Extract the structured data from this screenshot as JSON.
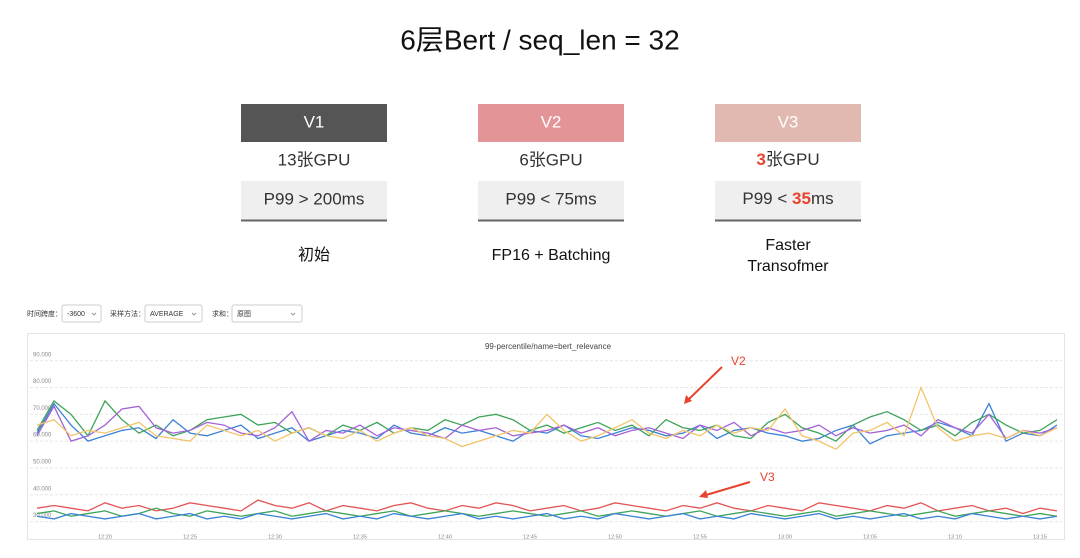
{
  "title": "6层Bert / seq_len = 32",
  "cards": [
    {
      "header": "V1",
      "gpus": [
        "13张GPU"
      ],
      "latency": [
        "P99 > 200ms"
      ],
      "caption": [
        "初始"
      ]
    },
    {
      "header": "V2",
      "gpus": [
        "6张GPU"
      ],
      "latency": [
        "P99 < 75ms"
      ],
      "caption": [
        "FP16 + Batching"
      ]
    },
    {
      "header": "V3",
      "gpus": [
        "3",
        "张GPU"
      ],
      "latency": [
        "P99 < ",
        "35",
        "ms"
      ],
      "caption": [
        "Faster",
        "Transofmer"
      ]
    }
  ],
  "controls": {
    "span_label": "时间跨度：",
    "span": "-3600",
    "method_label": "采样方法：",
    "method": "AVERAGE",
    "sum_label": "求和：",
    "sum": "原图"
  },
  "chart_data": {
    "type": "line",
    "title": "99-percentile/name=bert_relevance",
    "annotations": [
      "V2",
      "V3"
    ],
    "categories": [
      null,
      null,
      null,
      null,
      "12:20",
      null,
      null,
      null,
      null,
      "12:25",
      null,
      null,
      null,
      null,
      "12:30",
      null,
      null,
      null,
      null,
      "12:35",
      null,
      null,
      null,
      null,
      "12:40",
      null,
      null,
      null,
      null,
      "12:45",
      null,
      null,
      null,
      null,
      "12:50",
      null,
      null,
      null,
      null,
      "12:55",
      null,
      null,
      null,
      null,
      "13:00",
      null,
      null,
      null,
      null,
      "13:05",
      null,
      null,
      null,
      null,
      "13:10",
      null,
      null,
      null,
      null,
      "13:15",
      null
    ],
    "ylim": [
      25,
      94
    ],
    "yticks": [
      {
        "value": 30,
        "label": "30.000"
      },
      {
        "value": 40,
        "label": "40.000"
      },
      {
        "value": 50,
        "label": "50.000"
      },
      {
        "value": 60,
        "label": "60.000"
      },
      {
        "value": 70,
        "label": "70.000"
      },
      {
        "value": 80,
        "label": "80.000"
      },
      {
        "value": 90,
        "label": "90.000"
      }
    ],
    "grid": true,
    "series": [
      {
        "color": "#3b82d6",
        "values": [
          63,
          74,
          66,
          60,
          62,
          64,
          65,
          61,
          68,
          63,
          62,
          64,
          66,
          61,
          63,
          65,
          60,
          62,
          64,
          63,
          61,
          66,
          63,
          62,
          65,
          63,
          64,
          62,
          60,
          64,
          63,
          66,
          62,
          61,
          63,
          65,
          64,
          62,
          63,
          66,
          61,
          64,
          65,
          63,
          62,
          60,
          61,
          64,
          66,
          59,
          62,
          63,
          64,
          67,
          65,
          62,
          74,
          60,
          63,
          62,
          66
        ]
      },
      {
        "color": "#3fa35a",
        "values": [
          64,
          75,
          70,
          62,
          75,
          68,
          63,
          66,
          62,
          64,
          68,
          69,
          70,
          66,
          67,
          63,
          65,
          62,
          66,
          64,
          67,
          63,
          65,
          64,
          68,
          66,
          69,
          70,
          68,
          64,
          66,
          63,
          65,
          67,
          64,
          66,
          62,
          68,
          65,
          64,
          66,
          62,
          61,
          67,
          70,
          65,
          63,
          60,
          66,
          69,
          71,
          68,
          64,
          66,
          62,
          67,
          70,
          66,
          63,
          64,
          68
        ]
      },
      {
        "color": "#a463d8",
        "values": [
          62,
          73,
          60,
          62,
          66,
          72,
          73,
          65,
          63,
          64,
          67,
          66,
          63,
          62,
          65,
          71,
          60,
          64,
          63,
          66,
          62,
          65,
          64,
          63,
          61,
          66,
          64,
          65,
          62,
          63,
          64,
          66,
          63,
          65,
          62,
          64,
          65,
          63,
          61,
          66,
          64,
          67,
          62,
          65,
          63,
          64,
          66,
          62,
          65,
          63,
          64,
          66,
          62,
          68,
          65,
          63,
          70,
          61,
          64,
          63,
          65
        ]
      },
      {
        "color": "#f2c46a",
        "values": [
          66,
          68,
          62,
          64,
          63,
          65,
          67,
          62,
          61,
          60,
          66,
          64,
          62,
          64,
          60,
          63,
          65,
          62,
          61,
          64,
          60,
          63,
          65,
          62,
          61,
          58,
          60,
          62,
          64,
          63,
          70,
          64,
          60,
          62,
          65,
          68,
          63,
          61,
          64,
          62,
          66,
          63,
          65,
          64,
          72,
          62,
          60,
          57,
          63,
          64,
          67,
          62,
          80,
          65,
          60,
          62,
          63,
          61,
          64,
          62,
          65
        ]
      },
      {
        "color": "#e35454",
        "values": [
          35,
          36,
          35,
          34,
          37,
          35,
          36,
          34,
          35,
          37,
          36,
          35,
          34,
          38,
          36,
          35,
          37,
          34,
          36,
          35,
          34,
          36,
          37,
          35,
          34,
          36,
          35,
          37,
          36,
          34,
          35,
          36,
          34,
          35,
          37,
          36,
          35,
          34,
          36,
          35,
          37,
          35,
          34,
          36,
          35,
          34,
          37,
          36,
          35,
          34,
          36,
          35,
          37,
          34,
          35,
          36,
          34,
          35,
          33,
          35,
          34
        ]
      },
      {
        "color": "#3fa35a",
        "values": [
          33,
          34,
          32,
          33,
          34,
          32,
          33,
          35,
          33,
          32,
          34,
          33,
          32,
          33,
          34,
          32,
          33,
          34,
          33,
          32,
          33,
          34,
          32,
          33,
          34,
          33,
          32,
          33,
          34,
          33,
          32,
          33,
          34,
          32,
          33,
          34,
          33,
          32,
          33,
          34,
          32,
          33,
          34,
          33,
          32,
          33,
          34,
          32,
          33,
          34,
          33,
          32,
          33,
          34,
          32,
          33,
          34,
          33,
          32,
          33,
          32
        ]
      },
      {
        "color": "#3b82d6",
        "values": [
          32,
          31,
          33,
          32,
          31,
          32,
          33,
          31,
          32,
          33,
          31,
          32,
          31,
          33,
          32,
          31,
          32,
          33,
          31,
          32,
          31,
          33,
          32,
          31,
          32,
          33,
          31,
          32,
          31,
          32,
          33,
          31,
          32,
          31,
          33,
          32,
          31,
          32,
          33,
          31,
          32,
          31,
          33,
          32,
          31,
          32,
          33,
          31,
          32,
          31,
          32,
          33,
          31,
          32,
          31,
          33,
          32,
          31,
          32,
          31,
          32
        ]
      }
    ]
  }
}
